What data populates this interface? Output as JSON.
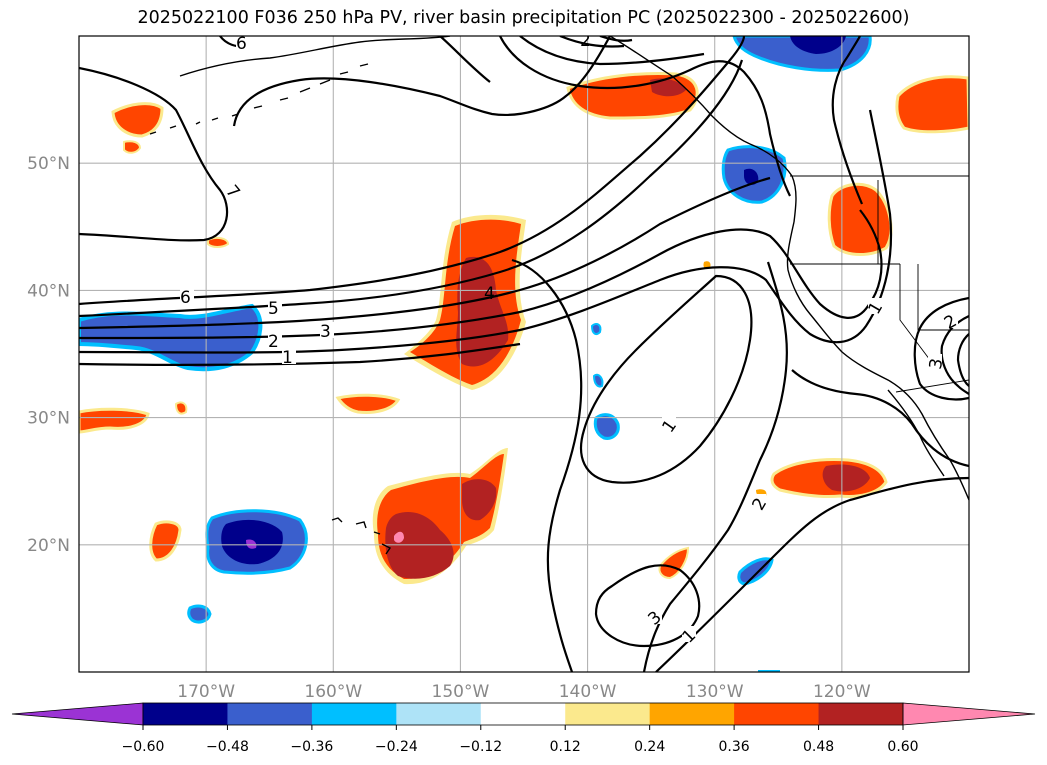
{
  "title": "2025022100 F036 250 hPa PV, river basin precipitation PC (2025022300 - 2025022600)",
  "map": {
    "lon_range": [
      -180,
      -110
    ],
    "lat_range": [
      10,
      60
    ],
    "lon_ticks": [
      {
        "lon": -170,
        "label": "170°W"
      },
      {
        "lon": -160,
        "label": "160°W"
      },
      {
        "lon": -150,
        "label": "150°W"
      },
      {
        "lon": -140,
        "label": "140°W"
      },
      {
        "lon": -130,
        "label": "130°W"
      },
      {
        "lon": -120,
        "label": "120°W"
      }
    ],
    "lat_ticks": [
      {
        "lat": 20,
        "label": "20°N"
      },
      {
        "lat": 30,
        "label": "30°N"
      },
      {
        "lat": 40,
        "label": "40°N"
      },
      {
        "lat": 50,
        "label": "50°N"
      }
    ],
    "grid": true
  },
  "colorbar": {
    "ticks": [
      "−0.60",
      "−0.48",
      "−0.36",
      "−0.24",
      "−0.12",
      "0.12",
      "0.24",
      "0.36",
      "0.48",
      "0.60"
    ],
    "colors": [
      "#9b33d4",
      "#00008b",
      "#3a5fcd",
      "#00bfff",
      "#aee3f7",
      "#ffffff",
      "#fbe98d",
      "#ffa500",
      "#ff4500",
      "#b22222",
      "#ff88b0"
    ]
  },
  "pv_contour_labels": [
    "6",
    "7",
    "6",
    "5",
    "4",
    "3",
    "2",
    "1",
    "1",
    "2",
    "3",
    "1",
    "1",
    "2",
    "3",
    "2"
  ],
  "colors": {
    "orange_red": "#ff4500",
    "dark_red": "#b22222",
    "yellow": "#fbe98d",
    "orange": "#ffa500",
    "royal_blue": "#3a5fcd",
    "navy": "#00008b",
    "sky": "#00bfff",
    "pink": "#ff88b0"
  }
}
